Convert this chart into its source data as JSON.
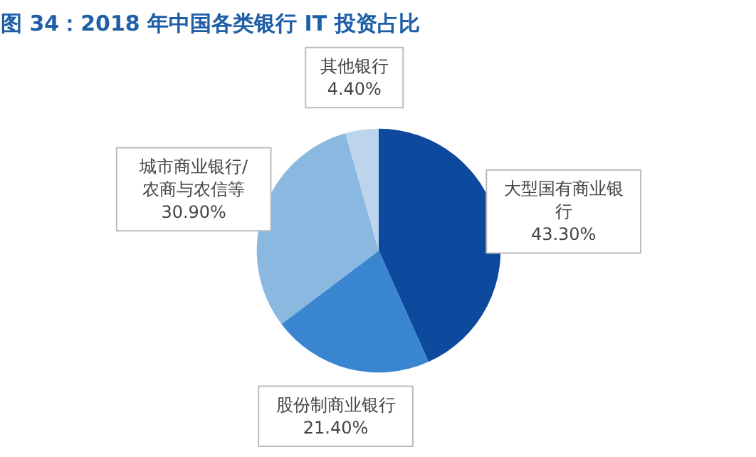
{
  "chart_data": {
    "type": "pie",
    "title": "图 34：2018 年中国各类银行 IT 投资占比",
    "categories": [
      "大型国有商业银行",
      "股份制商业银行",
      "城市商业银行/农商与农信等",
      "其他银行"
    ],
    "values": [
      43.3,
      21.4,
      30.9,
      4.4
    ],
    "value_labels": [
      "43.30%",
      "21.40%",
      "30.90%",
      "4.40%"
    ],
    "colors": [
      "#0d4a9e",
      "#3a85cf",
      "#8ab8e0",
      "#bdd5ec"
    ]
  }
}
